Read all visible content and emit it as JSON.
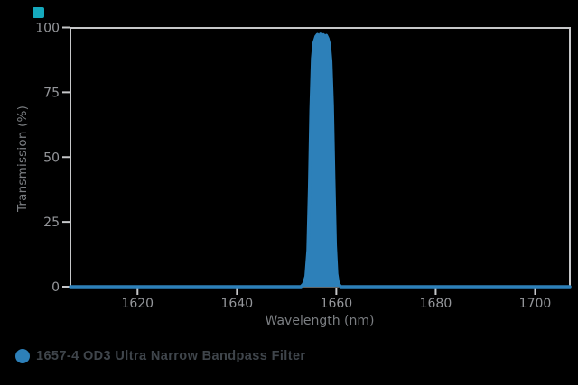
{
  "window": {
    "background_color": "#000000",
    "accent_square_color": "#15a9bd"
  },
  "chart_data": {
    "type": "area",
    "title": "",
    "xlabel": "Wavelength (nm)",
    "ylabel": "Transmission (%)",
    "xlim": [
      1606.5,
      1707
    ],
    "ylim": [
      0,
      100
    ],
    "x_ticks": [
      1620,
      1640,
      1660,
      1680,
      1700
    ],
    "y_ticks": [
      0,
      25,
      50,
      75,
      100
    ],
    "grid": false,
    "legend_position": "bottom-left",
    "colors": {
      "background": "#000000",
      "spine": "#c6c7c9",
      "tick_label": "#94969a",
      "axis_title": "#7b7e82",
      "legend_text": "#3f454b",
      "series": "#2d80b9"
    },
    "series": [
      {
        "name": "1657-4 OD3 Ultra Narrow Bandpass Filter",
        "color": "#2d80b9",
        "points": [
          [
            1606.5,
            0
          ],
          [
            1652.9,
            0
          ],
          [
            1653.4,
            1
          ],
          [
            1653.9,
            4
          ],
          [
            1654.3,
            14
          ],
          [
            1654.6,
            38
          ],
          [
            1654.9,
            68
          ],
          [
            1655.2,
            88
          ],
          [
            1655.5,
            94
          ],
          [
            1655.9,
            96.5
          ],
          [
            1656.2,
            97.3
          ],
          [
            1656.5,
            96.2
          ],
          [
            1656.8,
            97.4
          ],
          [
            1657.1,
            96.5
          ],
          [
            1657.4,
            97.2
          ],
          [
            1657.7,
            96.3
          ],
          [
            1658.0,
            96.9
          ],
          [
            1658.3,
            95.8
          ],
          [
            1658.6,
            93.5
          ],
          [
            1658.9,
            87
          ],
          [
            1659.2,
            70
          ],
          [
            1659.5,
            42
          ],
          [
            1659.8,
            16
          ],
          [
            1660.1,
            5
          ],
          [
            1660.4,
            1.2
          ],
          [
            1660.9,
            0
          ],
          [
            1707.0,
            0
          ]
        ]
      }
    ]
  }
}
